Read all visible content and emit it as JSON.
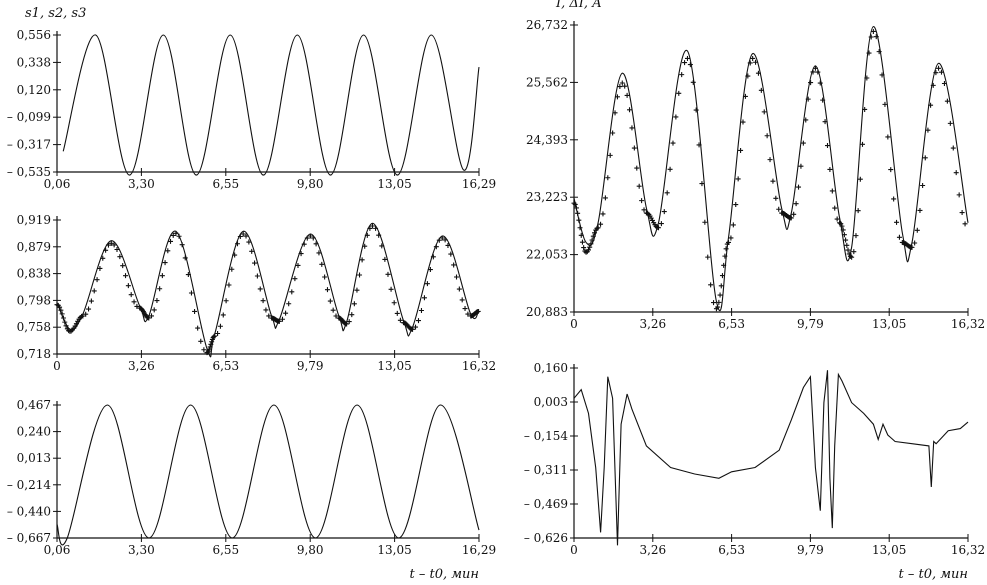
{
  "chart_data": [
    {
      "id": "s1",
      "type": "line",
      "ylabel": "s1, s2, s3",
      "xlabel": "",
      "x_ticks": [
        "0,06",
        "3,30",
        "6,55",
        "9,80",
        "13,05",
        "16,29"
      ],
      "y_ticks": [
        "0,556",
        "0,338",
        "0,120",
        "– 0,099",
        "– 0,317",
        "– 0,535"
      ],
      "xlim": [
        0.06,
        16.29
      ],
      "ylim": [
        -0.535,
        0.556
      ],
      "series": [
        {
          "style": "line",
          "x": [
            0.3,
            1.55,
            2.85,
            4.15,
            5.42,
            6.72,
            8.0,
            9.3,
            10.58,
            11.85,
            13.15,
            14.45,
            15.7,
            16.29
          ],
          "y": [
            -0.37,
            0.556,
            -0.56,
            0.556,
            -0.56,
            0.556,
            -0.56,
            0.556,
            -0.56,
            0.556,
            -0.56,
            0.556,
            -0.52,
            0.3
          ]
        }
      ]
    },
    {
      "id": "s2",
      "type": "line",
      "ylabel": "",
      "xlabel": "",
      "x_ticks": [
        "0",
        "3,26",
        "6,53",
        "9,79",
        "13,05",
        "16,32"
      ],
      "y_ticks": [
        "0,919",
        "0,879",
        "0,838",
        "0,798",
        "0,758",
        "0,718"
      ],
      "xlim": [
        0,
        16.32
      ],
      "ylim": [
        0.718,
        0.919
      ],
      "series": [
        {
          "style": "line",
          "x": [
            0,
            0.5,
            1.0,
            2.1,
            3.2,
            3.55,
            4.6,
            5.8,
            6.1,
            7.2,
            8.3,
            8.6,
            9.8,
            10.9,
            11.2,
            12.2,
            13.4,
            13.75,
            14.9,
            16.0,
            16.32
          ],
          "y": [
            0.795,
            0.755,
            0.778,
            0.888,
            0.79,
            0.775,
            0.902,
            0.726,
            0.748,
            0.902,
            0.775,
            0.77,
            0.898,
            0.775,
            0.766,
            0.914,
            0.768,
            0.758,
            0.895,
            0.778,
            0.785
          ]
        },
        {
          "style": "markers",
          "x": [
            0,
            0.5,
            1.0,
            2.1,
            3.2,
            3.55,
            4.6,
            5.8,
            6.1,
            7.2,
            8.3,
            8.6,
            9.8,
            10.9,
            11.2,
            12.2,
            13.4,
            13.75,
            14.9,
            16.0,
            16.32
          ],
          "y": [
            0.792,
            0.752,
            0.775,
            0.884,
            0.787,
            0.772,
            0.899,
            0.72,
            0.745,
            0.898,
            0.772,
            0.767,
            0.895,
            0.772,
            0.763,
            0.91,
            0.765,
            0.755,
            0.892,
            0.775,
            0.782
          ]
        }
      ]
    },
    {
      "id": "s3",
      "type": "line",
      "ylabel": "",
      "xlabel": "t – t0, мин",
      "x_ticks": [
        "0,06",
        "3,30",
        "6,55",
        "9,80",
        "13,05",
        "16,29"
      ],
      "y_ticks": [
        "0,467",
        "0,240",
        "0,013",
        "– 0,214",
        "– 0,440",
        "– 0,667"
      ],
      "xlim": [
        0.06,
        16.29
      ],
      "ylim": [
        -0.667,
        0.467
      ],
      "series": [
        {
          "style": "line",
          "x": [
            0.06,
            0.45,
            2.0,
            3.6,
            5.2,
            6.8,
            8.4,
            10.0,
            11.6,
            13.2,
            14.8,
            16.29
          ],
          "y": [
            -0.55,
            -0.67,
            0.467,
            -0.667,
            0.467,
            -0.667,
            0.467,
            -0.667,
            0.467,
            -0.667,
            0.467,
            -0.6
          ]
        }
      ]
    },
    {
      "id": "I",
      "type": "line",
      "ylabel": "I, ΔI, A",
      "xlabel": "",
      "x_ticks": [
        "0",
        "3,26",
        "6,53",
        "9,79",
        "13,05",
        "16,32"
      ],
      "y_ticks": [
        "26,732",
        "25,562",
        "24,393",
        "23,223",
        "22,053",
        "20,883"
      ],
      "xlim": [
        0,
        16.32
      ],
      "ylim": [
        20.883,
        26.732
      ],
      "series": [
        {
          "style": "line",
          "x": [
            0,
            0.5,
            1.0,
            2.0,
            3.0,
            3.5,
            4.7,
            5.9,
            6.4,
            7.4,
            8.6,
            9.0,
            10.0,
            11.0,
            11.5,
            12.4,
            13.6,
            14.0,
            15.1,
            16.32
          ],
          "y": [
            23.2,
            22.3,
            22.7,
            25.75,
            23.0,
            22.7,
            26.2,
            21.1,
            22.4,
            26.15,
            23.0,
            22.9,
            25.9,
            22.8,
            22.2,
            26.7,
            22.5,
            22.3,
            25.95,
            22.7
          ]
        },
        {
          "style": "markers",
          "x": [
            0,
            0.5,
            1.0,
            2.0,
            3.0,
            3.5,
            4.7,
            5.9,
            6.4,
            7.4,
            8.6,
            9.0,
            10.0,
            11.0,
            11.5,
            12.4,
            13.6,
            14.0,
            15.1,
            16.32
          ],
          "y": [
            23.1,
            22.1,
            22.6,
            25.55,
            22.9,
            22.6,
            26.05,
            20.95,
            22.3,
            26.05,
            22.9,
            22.8,
            25.85,
            22.7,
            22.0,
            26.6,
            22.3,
            22.2,
            25.85,
            22.6
          ]
        }
      ]
    },
    {
      "id": "dI",
      "type": "line",
      "ylabel": "",
      "xlabel": "t – t0, мин",
      "x_ticks": [
        "0",
        "3,26",
        "6,53",
        "9,79",
        "13,05",
        "16,32"
      ],
      "y_ticks": [
        "0,160",
        "0,003",
        "– 0,154",
        "– 0,311",
        "– 0,469",
        "– 0,626"
      ],
      "xlim": [
        0,
        16.32
      ],
      "ylim": [
        -0.626,
        0.16
      ],
      "series": [
        {
          "style": "line",
          "x": [
            0,
            0.3,
            0.6,
            0.9,
            1.1,
            1.25,
            1.4,
            1.6,
            1.8,
            1.95,
            2.2,
            2.4,
            3.0,
            4.0,
            5.0,
            6.0,
            6.53,
            7.5,
            8.5,
            9.0,
            9.5,
            9.79,
            10.0,
            10.2,
            10.35,
            10.5,
            10.6,
            10.7,
            10.8,
            10.95,
            11.1,
            11.5,
            12.0,
            12.4,
            12.6,
            12.8,
            13.0,
            13.3,
            14.0,
            14.7,
            14.8,
            14.9,
            15.0,
            15.5,
            16.0,
            16.32
          ],
          "y": [
            0.02,
            0.06,
            -0.05,
            -0.3,
            -0.6,
            -0.3,
            0.12,
            0.02,
            -0.66,
            -0.1,
            0.04,
            -0.03,
            -0.2,
            -0.3,
            -0.33,
            -0.35,
            -0.32,
            -0.3,
            -0.22,
            -0.08,
            0.07,
            0.12,
            -0.3,
            -0.5,
            0.0,
            0.15,
            -0.35,
            -0.58,
            -0.2,
            0.13,
            0.1,
            0.0,
            -0.05,
            -0.1,
            -0.17,
            -0.1,
            -0.15,
            -0.18,
            -0.19,
            -0.2,
            -0.39,
            -0.18,
            -0.19,
            -0.13,
            -0.12,
            -0.09
          ]
        }
      ]
    }
  ]
}
